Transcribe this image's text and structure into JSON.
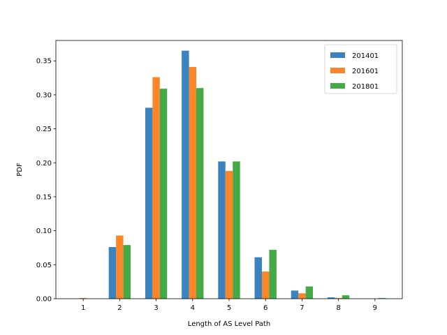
{
  "chart_data": {
    "type": "bar",
    "title": "",
    "xlabel": "Length of AS Level Path",
    "ylabel": "PDF",
    "categories": [
      "1",
      "2",
      "3",
      "4",
      "5",
      "6",
      "7",
      "8",
      "9"
    ],
    "x": [
      1,
      2,
      3,
      4,
      5,
      6,
      7,
      8,
      9
    ],
    "xlim": [
      0.25,
      9.75
    ],
    "ylim": [
      0,
      0.38
    ],
    "yticks": [
      0.0,
      0.05,
      0.1,
      0.15,
      0.2,
      0.25,
      0.3,
      0.35
    ],
    "ytick_labels": [
      "0.00",
      "0.05",
      "0.10",
      "0.15",
      "0.20",
      "0.25",
      "0.30",
      "0.35"
    ],
    "grid": false,
    "legend": "top-right",
    "series": [
      {
        "name": "201401",
        "color": "#3a83bf",
        "values": [
          0.0,
          0.076,
          0.281,
          0.365,
          0.202,
          0.061,
          0.012,
          0.002,
          0.0
        ]
      },
      {
        "name": "201601",
        "color": "#fa8629",
        "values": [
          0.001,
          0.093,
          0.326,
          0.341,
          0.188,
          0.04,
          0.008,
          0.001,
          0.0
        ]
      },
      {
        "name": "201801",
        "color": "#45a945",
        "values": [
          0.0,
          0.079,
          0.309,
          0.31,
          0.202,
          0.072,
          0.018,
          0.005,
          0.001
        ]
      }
    ]
  }
}
